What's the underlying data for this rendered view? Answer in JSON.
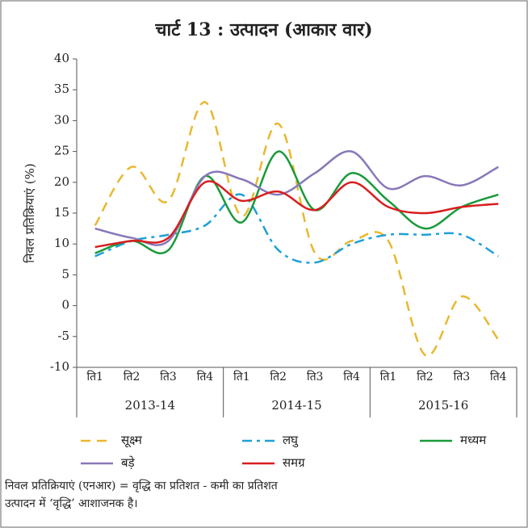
{
  "chart_data": {
    "type": "line",
    "title": "चार्ट 13 : उत्पादन (आकार वार)",
    "y_label": "निवल प्रतिक्रियाएं (%)",
    "categories": [
      "ति1",
      "ति2",
      "ति3",
      "ति4",
      "ति1",
      "ति2",
      "ति3",
      "ति4",
      "ति1",
      "ति2",
      "ति3",
      "ति4"
    ],
    "groups": [
      "2013-14",
      "2014-15",
      "2015-16"
    ],
    "ylim": [
      -10,
      40
    ],
    "yticks": [
      -10,
      -5,
      0,
      5,
      10,
      15,
      20,
      25,
      30,
      35,
      40
    ],
    "series": [
      {
        "name": "सूक्ष्म",
        "color": "#e8b830",
        "dash": "dashed",
        "values": [
          13,
          22.5,
          17,
          33,
          14.5,
          29.5,
          8.5,
          10.5,
          10.5,
          -8,
          1.5,
          -5.5
        ]
      },
      {
        "name": "लघु",
        "color": "#1ea0d8",
        "dash": "dashdot",
        "values": [
          8,
          10.5,
          11.5,
          13,
          18,
          9,
          7,
          10,
          11.5,
          11.5,
          11.5,
          8
        ]
      },
      {
        "name": "मध्यम",
        "color": "#1a9a3a",
        "dash": "solid",
        "values": [
          8.5,
          10.5,
          9,
          21,
          13.5,
          25,
          15.5,
          21.5,
          17,
          12.5,
          16,
          18
        ]
      },
      {
        "name": "बड़े",
        "color": "#8878b8",
        "dash": "solid",
        "values": [
          12.5,
          11,
          10.5,
          21,
          20.5,
          18,
          21.5,
          25,
          19,
          21,
          19.5,
          22.5
        ]
      },
      {
        "name": "समग्र",
        "color": "#d81e1e",
        "dash": "solid",
        "values": [
          9.5,
          10.5,
          11,
          20,
          17,
          18.5,
          15.5,
          20,
          16,
          15,
          16,
          16.5
        ]
      }
    ],
    "notes": [
      "निवल प्रतिक्रियाएं (एनआर) = वृद्धि का प्रतिशत - कमी का प्रतिशत",
      "उत्पादन में ‘वृद्धि’ आशाजनक है।"
    ]
  }
}
